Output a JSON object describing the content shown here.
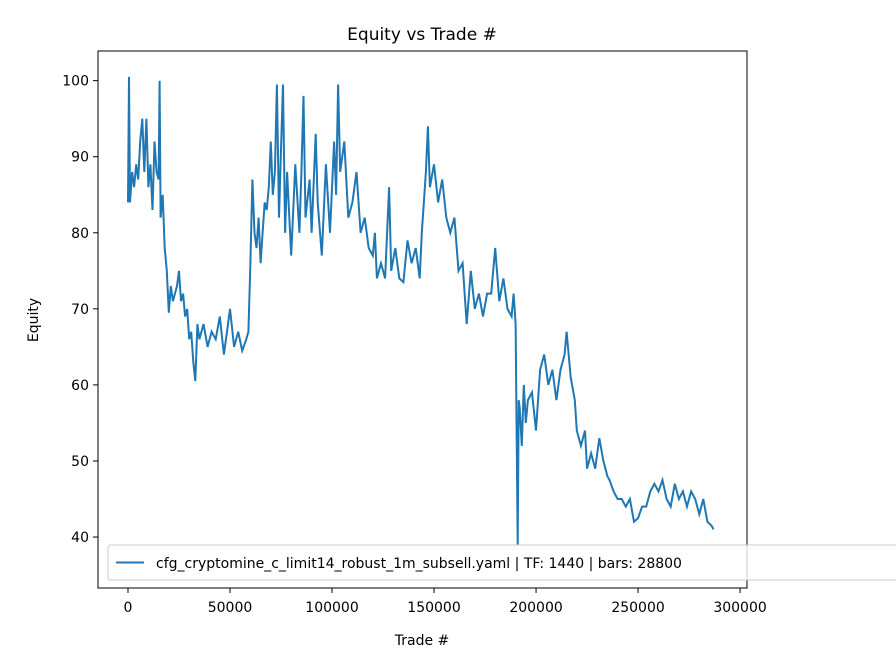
{
  "chart_data": {
    "type": "line",
    "title": "Equity vs Trade #",
    "xlabel": "Trade #",
    "ylabel": "Equity",
    "xlim": [
      -14700,
      303400
    ],
    "ylim": [
      33.3,
      103.9
    ],
    "xticks": [
      0,
      50000,
      100000,
      150000,
      200000,
      250000,
      300000
    ],
    "yticks": [
      40,
      50,
      60,
      70,
      80,
      90,
      100
    ],
    "legend": "lower left",
    "series": [
      {
        "name": "cfg_cryptomine_c_limit14_robust_1m_subsell.yaml | TF: 1440 | bars: 28800",
        "color": "#1f77b4",
        "x": [
          0,
          500,
          1000,
          2000,
          3000,
          4000,
          5000,
          6000,
          7000,
          8000,
          9000,
          10000,
          11000,
          12000,
          13000,
          14000,
          15000,
          15500,
          16000,
          17000,
          18000,
          19000,
          20000,
          21000,
          22000,
          24000,
          25000,
          26000,
          27000,
          28000,
          29000,
          30000,
          31000,
          32000,
          33000,
          34000,
          35000,
          37000,
          39000,
          41000,
          43000,
          45000,
          47000,
          49000,
          50000,
          52000,
          54000,
          56000,
          58000,
          59000,
          60000,
          61000,
          62000,
          63000,
          64000,
          65000,
          66000,
          67000,
          68000,
          69000,
          70000,
          71000,
          72000,
          73000,
          74000,
          75000,
          76000,
          77000,
          78000,
          80000,
          82000,
          84000,
          85000,
          86000,
          87000,
          89000,
          90000,
          92000,
          93000,
          95000,
          97000,
          99000,
          101000,
          102000,
          103000,
          104000,
          106000,
          108000,
          110000,
          112000,
          114000,
          116000,
          118000,
          120000,
          121000,
          122000,
          124000,
          126000,
          128000,
          129000,
          131000,
          133000,
          135000,
          137000,
          139000,
          141000,
          143000,
          144000,
          146000,
          147000,
          148000,
          150000,
          152000,
          154000,
          156000,
          158000,
          160000,
          162000,
          164000,
          166000,
          168000,
          170000,
          172000,
          174000,
          176000,
          178000,
          180000,
          182000,
          184000,
          186000,
          188000,
          189000,
          190000,
          191000,
          191500,
          192000,
          193000,
          194000,
          195000,
          196000,
          198000,
          200000,
          202000,
          204000,
          206000,
          208000,
          210000,
          212000,
          214000,
          215000,
          217000,
          219000,
          220000,
          222000,
          224000,
          225000,
          227000,
          229000,
          231000,
          233000,
          235000,
          236000,
          238000,
          240000,
          242000,
          244000,
          246000,
          248000,
          250000,
          252000,
          254000,
          256000,
          258000,
          260000,
          262000,
          264000,
          266000,
          268000,
          270000,
          272000,
          274000,
          276000,
          278000,
          280000,
          282000,
          284000,
          286000,
          287000
        ],
        "values": [
          84,
          100.5,
          84,
          88,
          86,
          89,
          87,
          92,
          95,
          88,
          95,
          86,
          89,
          83,
          92,
          88,
          87,
          100,
          82,
          85,
          78,
          75,
          69.5,
          73,
          71,
          73,
          75,
          71,
          72,
          69,
          70,
          66,
          67,
          63,
          60.5,
          68,
          66,
          68,
          65,
          67,
          66,
          69,
          64,
          68,
          70,
          65,
          67,
          64.5,
          66,
          67,
          76,
          87,
          80,
          78,
          82,
          76,
          80,
          84,
          83,
          86,
          92,
          85,
          88,
          99.5,
          82,
          91,
          99.5,
          80,
          88,
          77,
          89,
          80,
          88,
          98,
          82,
          87,
          80,
          93,
          84,
          77,
          89,
          80,
          92,
          85,
          99.5,
          88,
          92,
          82,
          84,
          88,
          80,
          82,
          78,
          77,
          80,
          74,
          76,
          74,
          86,
          75,
          78,
          74,
          73.5,
          79,
          76,
          78,
          74,
          80,
          88,
          94,
          86,
          89,
          84,
          87,
          82,
          80,
          82,
          75,
          76,
          68,
          75,
          70,
          72,
          69,
          72,
          72,
          78,
          71,
          74,
          70,
          69,
          72,
          68,
          39,
          58,
          57,
          52,
          60,
          55,
          58,
          59,
          54,
          62,
          64,
          60,
          62,
          58,
          62,
          64,
          67,
          61,
          58,
          54,
          52,
          54,
          49,
          51,
          49,
          53,
          50,
          48,
          47.5,
          46,
          45,
          45,
          44,
          45,
          42,
          42.5,
          44,
          44,
          46,
          47,
          46,
          47.5,
          45,
          44,
          47,
          45,
          46,
          44,
          46,
          45,
          43,
          45,
          42,
          41.5,
          41
        ]
      }
    ]
  }
}
